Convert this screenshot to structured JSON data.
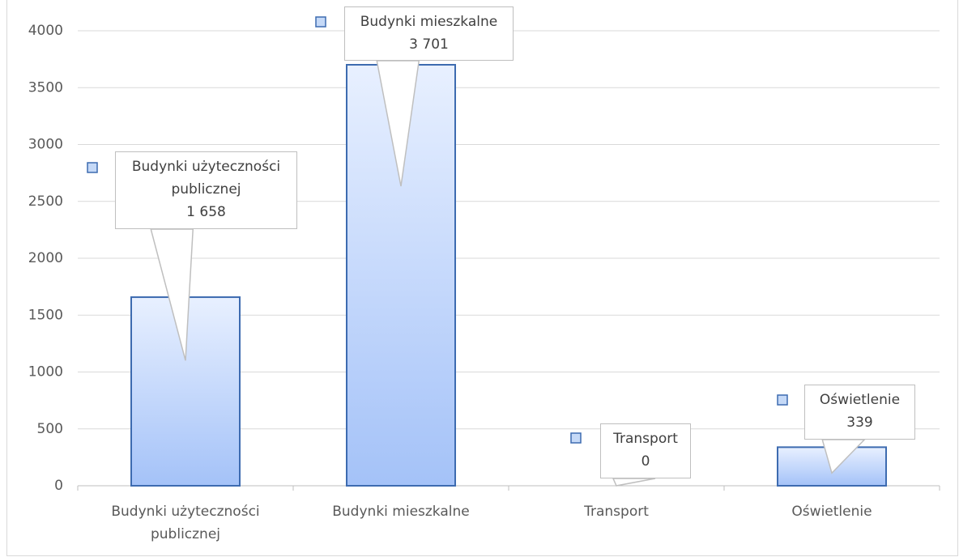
{
  "chart_data": {
    "type": "bar",
    "categories": [
      "Budynki użyteczności publicznej",
      "Budynki mieszkalne",
      "Transport",
      "Oświetlenie"
    ],
    "values": [
      1658,
      3701,
      0,
      339
    ],
    "value_labels": [
      "1 658",
      "3 701",
      "0",
      "339"
    ],
    "color": "#a4c2f8",
    "ylim": [
      0,
      4000
    ],
    "yticks": [
      0,
      500,
      1000,
      1500,
      2000,
      2500,
      3000,
      3500,
      4000
    ],
    "grid": true
  }
}
